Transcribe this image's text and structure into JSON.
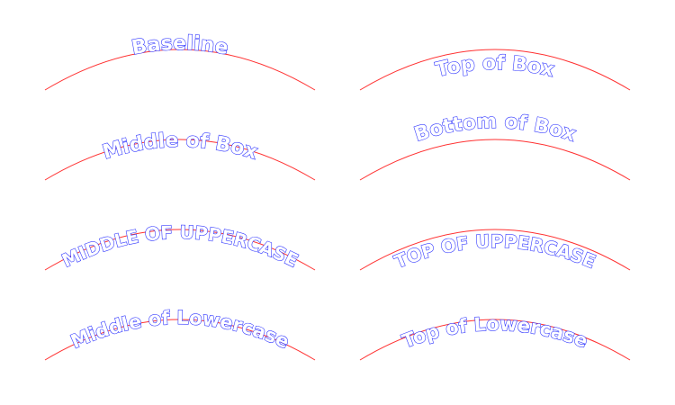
{
  "labels": {
    "baseline": "Baseline",
    "top_of_box": "Top of Box",
    "middle_of_box": "Middle of Box",
    "bottom_of_box": "Bottom of Box",
    "middle_of_uppercase": "MIDDLE OF UPPERCASE",
    "top_of_uppercase": "TOP OF UPPERCASE",
    "middle_of_lowercase": "Middle of Lowercase",
    "top_of_lowercase": "Top of Lowercase"
  },
  "colors": {
    "arc": "#ff3030",
    "text_outline": "#2f35ff",
    "background": "#ffffff"
  }
}
